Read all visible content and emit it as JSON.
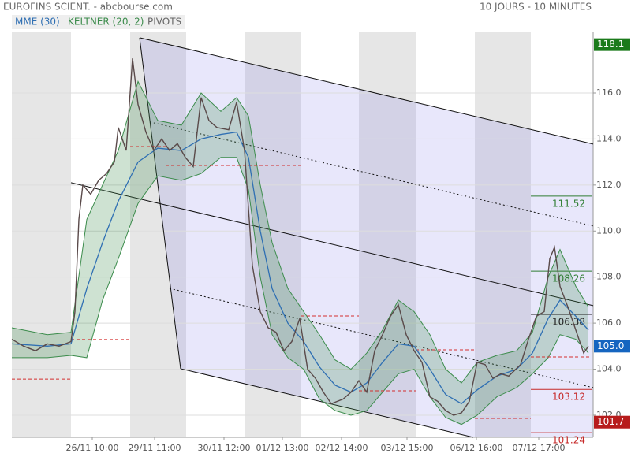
{
  "chart_data": {
    "type": "line",
    "title": "EUROFINS SCIENT. - abcbourse.com",
    "subtitle": "10 JOURS - 10 MINUTES",
    "xlim": [
      0,
      737
    ],
    "ylim": [
      101.04,
      118.67
    ],
    "xticks": [
      {
        "value": 102,
        "label": "26/11 10:00"
      },
      {
        "value": 181,
        "label": "29/11 11:00"
      },
      {
        "value": 269,
        "label": "30/11 12:00"
      },
      {
        "value": 343,
        "label": "01/12 13:00"
      },
      {
        "value": 418,
        "label": "02/12 14:00"
      },
      {
        "value": 501,
        "label": "03/12 15:00"
      },
      {
        "value": 589,
        "label": "06/12 16:00"
      },
      {
        "value": 668,
        "label": "07/12 17:00"
      }
    ],
    "yticks": [
      {
        "value": 102,
        "label": "102.0"
      },
      {
        "value": 104,
        "label": "104.0"
      },
      {
        "value": 106,
        "label": "106.0"
      },
      {
        "value": 108,
        "label": "108.0"
      },
      {
        "value": 110,
        "label": "110.0"
      },
      {
        "value": 112,
        "label": "112.0"
      },
      {
        "value": 114,
        "label": "114.0"
      },
      {
        "value": 116,
        "label": "116.0"
      }
    ],
    "grid": true,
    "legend": [
      "MME (30)",
      "KELTNER (20, 2)",
      "PIVOTS"
    ],
    "price": {
      "color": "#5a4a4a",
      "x": [
        0,
        15,
        30,
        45,
        60,
        75,
        80,
        85,
        90,
        100,
        110,
        120,
        130,
        135,
        145,
        153,
        160,
        170,
        180,
        190,
        200,
        210,
        220,
        230,
        240,
        250,
        260,
        275,
        285,
        295,
        305,
        315,
        325,
        335,
        345,
        355,
        365,
        375,
        385,
        395,
        405,
        420,
        430,
        440,
        450,
        460,
        470,
        480,
        490,
        500,
        510,
        520,
        530,
        540,
        550,
        560,
        570,
        580,
        590,
        600,
        610,
        620,
        630,
        645,
        655,
        665,
        675,
        682,
        688,
        695,
        705,
        715,
        725,
        731
      ],
      "values": [
        105.3,
        105.0,
        104.8,
        105.1,
        105.0,
        105.2,
        106.5,
        110.5,
        112,
        111.6,
        112.2,
        112.5,
        113,
        114.5,
        113.5,
        117.5,
        115.5,
        114.3,
        113.5,
        114,
        113.5,
        113.8,
        113.2,
        112.8,
        115.8,
        114.8,
        114.5,
        114.4,
        115.6,
        113.5,
        108.5,
        106.5,
        105.8,
        105.6,
        104.8,
        105.2,
        106.2,
        104,
        103.6,
        103,
        102.5,
        102.7,
        103,
        103.5,
        103,
        104.8,
        105.5,
        106.3,
        106.8,
        105.5,
        104.8,
        104.3,
        102.8,
        102.6,
        102.2,
        102,
        102.1,
        102.6,
        104.3,
        104.2,
        103.6,
        103.8,
        103.7,
        104.2,
        105.3,
        106.3,
        106.5,
        108.8,
        109.3,
        107.6,
        106.7,
        105.7,
        104.7,
        105.0
      ]
    },
    "ema": {
      "name": "MME (30)",
      "color": "#2f6fb3",
      "x": [
        0,
        45,
        75,
        95,
        115,
        135,
        160,
        185,
        215,
        240,
        265,
        285,
        300,
        315,
        330,
        350,
        370,
        390,
        410,
        430,
        450,
        470,
        490,
        510,
        530,
        550,
        570,
        590,
        615,
        640,
        660,
        680,
        695,
        715,
        731
      ],
      "values": [
        105.1,
        105.0,
        105.1,
        107.5,
        109.5,
        111.3,
        113.0,
        113.6,
        113.5,
        114.0,
        114.2,
        114.3,
        113.2,
        110,
        107.5,
        106,
        105.2,
        104.1,
        103.3,
        103.0,
        103.4,
        104.3,
        105.1,
        105.0,
        104.0,
        102.9,
        102.5,
        103.1,
        103.7,
        104.0,
        104.7,
        106.2,
        107,
        106.3,
        105.7
      ]
    },
    "keltner": {
      "name": "KELTNER (20, 2)",
      "color": "#3c8c4c",
      "upper": [
        105.8,
        105.5,
        105.6,
        110.5,
        112,
        113.5,
        116.5,
        114.8,
        114.6,
        116,
        115.2,
        115.8,
        115,
        112,
        109.5,
        107.5,
        106.5,
        105.5,
        104.4,
        104,
        104.7,
        105.7,
        107,
        106.5,
        105.5,
        104,
        103.4,
        104.3,
        104.6,
        104.8,
        105.6,
        108,
        109.2,
        107.6,
        106.7
      ],
      "lower": [
        104.5,
        104.5,
        104.6,
        104.5,
        107,
        108.8,
        111.2,
        112.4,
        112.2,
        112.5,
        113.2,
        113.2,
        111.8,
        108,
        105.5,
        104.5,
        104,
        102.7,
        102.2,
        102,
        102.2,
        103,
        103.8,
        104,
        102.8,
        101.9,
        101.6,
        102,
        102.8,
        103.2,
        103.8,
        104.5,
        105.5,
        105.3,
        104.7
      ]
    },
    "pivots": [
      {
        "from": 0,
        "to": 75,
        "value": 103.57
      },
      {
        "from": 75,
        "to": 150,
        "value": 105.29
      },
      {
        "from": 150,
        "to": 195,
        "value": 113.67
      },
      {
        "from": 195,
        "to": 367,
        "value": 112.85
      },
      {
        "from": 367,
        "to": 440,
        "value": 106.31
      },
      {
        "from": 440,
        "to": 512,
        "value": 103.06
      },
      {
        "from": 512,
        "to": 587,
        "value": 104.84
      },
      {
        "from": 587,
        "to": 658,
        "value": 101.86
      },
      {
        "from": 658,
        "to": 735,
        "value": 104.53
      }
    ],
    "levels": [
      {
        "value": 111.52,
        "color": "#2e7d32"
      },
      {
        "value": 108.26,
        "color": "#2e7d32"
      },
      {
        "value": 106.38,
        "color": "#222222"
      },
      {
        "value": 103.12,
        "color": "#c62828"
      },
      {
        "value": 101.24,
        "color": "#c62828"
      }
    ],
    "channel": {
      "upper": [
        [
          162,
          118.4
        ],
        [
          737,
          113.78
        ]
      ],
      "middle": [
        [
          75,
          112.1
        ],
        [
          737,
          106.76
        ]
      ],
      "lower": [
        [
          214,
          104.02
        ],
        [
          585,
          101.04
        ]
      ],
      "dotted_upper": [
        [
          175,
          114.74
        ],
        [
          737,
          110.22
        ]
      ],
      "dotted_lower": [
        [
          200,
          107.51
        ],
        [
          737,
          103.2
        ]
      ]
    },
    "markers": [
      {
        "value": 118.1,
        "label": "118.1",
        "color": "#1b7a1b"
      },
      {
        "value": 105,
        "label": "105.0",
        "color": "#1565c0"
      },
      {
        "value": 101.7,
        "label": "101.7",
        "color": "#b71c1c"
      }
    ]
  }
}
